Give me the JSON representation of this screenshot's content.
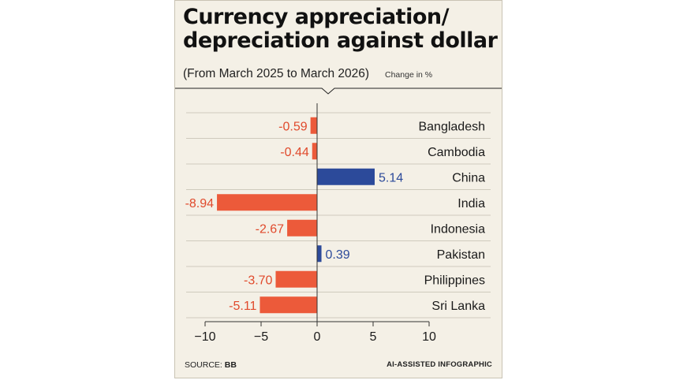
{
  "header": {
    "title_line1": "Currency appreciation/",
    "title_line2": "depreciation against dollar",
    "subtitle": "(From March 2025 to March 2026)",
    "unit_note": "Change in %"
  },
  "footer": {
    "source_label": "SOURCE:",
    "source_value": "BB",
    "credit": "AI-ASSISTED INFOGRAPHIC"
  },
  "colors": {
    "negative": "#ec5a3a",
    "positive": "#2c4a9a",
    "negative_label": "#e04a2c",
    "positive_label": "#2c4a9a",
    "gridline": "#cfcabd",
    "axis": "#333333"
  },
  "chart_data": {
    "type": "bar",
    "orientation": "horizontal",
    "categories": [
      "Bangladesh",
      "Cambodia",
      "China",
      "India",
      "Indonesia",
      "Pakistan",
      "Philippines",
      "Sri Lanka"
    ],
    "values": [
      -0.59,
      -0.44,
      5.14,
      -8.94,
      -2.67,
      0.39,
      -3.7,
      -5.11
    ],
    "value_labels": [
      "-0.59",
      "-0.44",
      "5.14",
      "-8.94",
      "-2.67",
      "0.39",
      "-3.70",
      "-5.11"
    ],
    "xlim": [
      -10,
      10
    ],
    "xticks": [
      -10,
      -5,
      0,
      5,
      10
    ],
    "xtick_labels": [
      "−10",
      "−5",
      "0",
      "5",
      "10"
    ],
    "grid": false
  }
}
